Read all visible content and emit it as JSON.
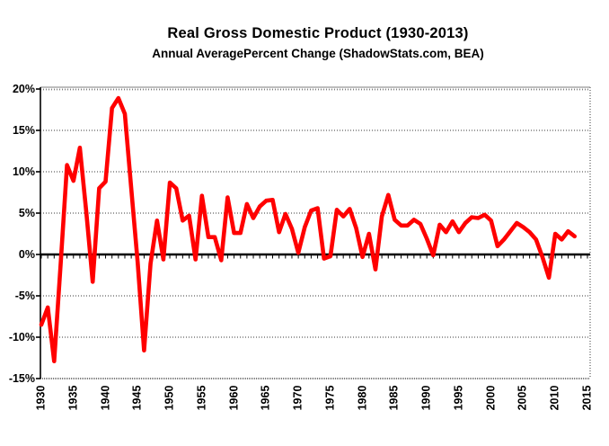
{
  "chart_data": {
    "type": "line",
    "title": "Real Gross Domestic Product (1930-2013)",
    "subtitle": "Annual AveragePercent Change (ShadowStats.com, BEA)",
    "xlabel": "",
    "ylabel": "",
    "ylim": [
      -15,
      20
    ],
    "xlim": [
      1930,
      2015
    ],
    "y_ticks": [
      "20%",
      "15%",
      "10%",
      "5%",
      "0%",
      "-5%",
      "-10%",
      "-15%"
    ],
    "x_ticks": [
      "1930",
      "1935",
      "1940",
      "1945",
      "1950",
      "1955",
      "1960",
      "1965",
      "1970",
      "1975",
      "1980",
      "1985",
      "1990",
      "1995",
      "2000",
      "2005",
      "2010",
      "2015"
    ],
    "grid": "horizontal dotted gridlines, zero axis emphasized with yearly tick marks",
    "legend": "none",
    "series": [
      {
        "name": "Real GDP annual average percent change",
        "color": "#FF0000",
        "x": [
          1930,
          1931,
          1932,
          1933,
          1934,
          1935,
          1936,
          1937,
          1938,
          1939,
          1940,
          1941,
          1942,
          1943,
          1944,
          1945,
          1946,
          1947,
          1948,
          1949,
          1950,
          1951,
          1952,
          1953,
          1954,
          1955,
          1956,
          1957,
          1958,
          1959,
          1960,
          1961,
          1962,
          1963,
          1964,
          1965,
          1966,
          1967,
          1968,
          1969,
          1970,
          1971,
          1972,
          1973,
          1974,
          1975,
          1976,
          1977,
          1978,
          1979,
          1980,
          1981,
          1982,
          1983,
          1984,
          1985,
          1986,
          1987,
          1988,
          1989,
          1990,
          1991,
          1992,
          1993,
          1994,
          1995,
          1996,
          1997,
          1998,
          1999,
          2000,
          2001,
          2002,
          2003,
          2004,
          2005,
          2006,
          2007,
          2008,
          2009,
          2010,
          2011,
          2012,
          2013
        ],
        "values": [
          -8.5,
          -6.4,
          -12.9,
          -1.2,
          10.8,
          8.9,
          12.9,
          5.1,
          -3.3,
          8.0,
          8.8,
          17.7,
          18.9,
          17.0,
          8.0,
          -1.0,
          -11.6,
          -1.1,
          4.1,
          -0.6,
          8.7,
          8.0,
          4.1,
          4.7,
          -0.6,
          7.1,
          2.1,
          2.1,
          -0.7,
          6.9,
          2.6,
          2.6,
          6.1,
          4.4,
          5.8,
          6.5,
          6.6,
          2.7,
          4.9,
          3.1,
          0.2,
          3.3,
          5.3,
          5.6,
          -0.5,
          -0.2,
          5.4,
          4.6,
          5.5,
          3.2,
          -0.3,
          2.5,
          -1.8,
          4.6,
          7.2,
          4.2,
          3.5,
          3.5,
          4.2,
          3.7,
          1.9,
          -0.1,
          3.6,
          2.7,
          4.0,
          2.7,
          3.8,
          4.5,
          4.4,
          4.8,
          4.1,
          1.0,
          1.8,
          2.8,
          3.8,
          3.3,
          2.7,
          1.8,
          -0.3,
          -2.8,
          2.5,
          1.8,
          2.8,
          2.2
        ]
      }
    ]
  },
  "colors": {
    "line": "#FF0000",
    "gridline": "#7a7a7a",
    "frame": "#a8a8a8",
    "axis": "#000000",
    "text": "#000000",
    "background": "#FFFFFF"
  }
}
